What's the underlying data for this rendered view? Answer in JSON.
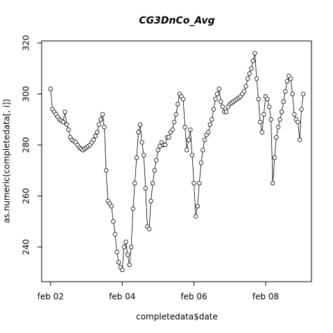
{
  "chart_data": {
    "type": "line",
    "title": "CG3DnCo_Avg",
    "title_color": "#0000cc",
    "x_label": "completedata$date",
    "y_label": "as.numeric(completedata[, i])",
    "x": [
      2.0,
      2.05,
      2.1,
      2.15,
      2.2,
      2.25,
      2.3,
      2.35,
      2.4,
      2.45,
      2.5,
      2.55,
      2.6,
      2.65,
      2.7,
      2.75,
      2.8,
      2.85,
      2.9,
      2.95,
      3.0,
      3.05,
      3.1,
      3.15,
      3.2,
      3.25,
      3.3,
      3.35,
      3.4,
      3.45,
      3.5,
      3.55,
      3.6,
      3.65,
      3.7,
      3.75,
      3.8,
      3.85,
      3.9,
      3.95,
      4.0,
      4.05,
      4.1,
      4.15,
      4.2,
      4.25,
      4.3,
      4.35,
      4.4,
      4.45,
      4.5,
      4.55,
      4.6,
      4.65,
      4.7,
      4.75,
      4.8,
      4.85,
      4.9,
      4.95,
      5.0,
      5.05,
      5.1,
      5.15,
      5.2,
      5.25,
      5.3,
      5.35,
      5.4,
      5.45,
      5.5,
      5.55,
      5.6,
      5.65,
      5.7,
      5.75,
      5.8,
      5.85,
      5.9,
      5.95,
      6.0,
      6.05,
      6.1,
      6.15,
      6.2,
      6.25,
      6.3,
      6.35,
      6.4,
      6.45,
      6.5,
      6.55,
      6.6,
      6.65,
      6.7,
      6.75,
      6.8,
      6.85,
      6.9,
      6.95,
      7.0,
      7.05,
      7.1,
      7.15,
      7.2,
      7.25,
      7.3,
      7.35,
      7.4,
      7.45,
      7.5,
      7.55,
      7.6,
      7.65,
      7.7,
      7.75,
      7.8,
      7.85,
      7.9,
      7.95,
      8.0,
      8.05,
      8.1,
      8.15,
      8.2,
      8.25,
      8.3,
      8.35,
      8.4,
      8.45,
      8.5,
      8.55,
      8.6,
      8.65,
      8.7,
      8.75,
      8.8,
      8.85,
      8.9,
      8.95,
      9.0,
      9.05
    ],
    "values": [
      302,
      294,
      293,
      292,
      291,
      290,
      289.5,
      289,
      293,
      288,
      286,
      283,
      282,
      281.5,
      281,
      280,
      279,
      278.5,
      278,
      278.5,
      279,
      279.5,
      280,
      281,
      282,
      283.5,
      285,
      288,
      290,
      292,
      287,
      270,
      258,
      257,
      256,
      250,
      245,
      238,
      234,
      232,
      231,
      240,
      242,
      237,
      233,
      240,
      255,
      265,
      275,
      285,
      288,
      281,
      276,
      263,
      248,
      247,
      258,
      265,
      270,
      274,
      278,
      279.5,
      281,
      280,
      280,
      283,
      283,
      285,
      286,
      289,
      292,
      296,
      300,
      299,
      298,
      287,
      278,
      282,
      286,
      276,
      265,
      252,
      256,
      265,
      273,
      278,
      282,
      284,
      285,
      288,
      290,
      294,
      298,
      300,
      302,
      297,
      295,
      293,
      293,
      295,
      296,
      296.5,
      297,
      297.5,
      298,
      298.5,
      299,
      300,
      301,
      303,
      306,
      308,
      310,
      313,
      316,
      306,
      298,
      289,
      285,
      292,
      299,
      298,
      295,
      290,
      265,
      275,
      283,
      287,
      290,
      293,
      297,
      301,
      305,
      307,
      306,
      300,
      292,
      290,
      289,
      282,
      294,
      300
    ],
    "color": "#000000",
    "xlim": [
      1.75,
      9.28
    ],
    "ylim": [
      226.4,
      320.8
    ],
    "xticks": [
      {
        "value": 2,
        "label": "feb 02"
      },
      {
        "value": 4,
        "label": "feb 04"
      },
      {
        "value": 6,
        "label": "feb 06"
      },
      {
        "value": 8,
        "label": "feb 08"
      }
    ],
    "yticks": [
      240,
      260,
      280,
      300,
      320
    ]
  }
}
